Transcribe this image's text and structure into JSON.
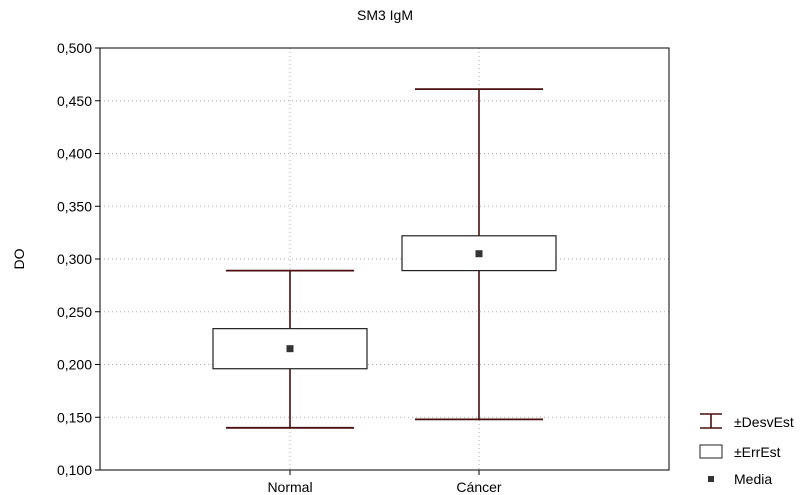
{
  "chart_data": {
    "type": "box",
    "title": "SM3 IgM",
    "xlabel": "",
    "ylabel": "DO",
    "categories": [
      "Normal",
      "Cáncer"
    ],
    "ylim": [
      0.1,
      0.5
    ],
    "yticks": [
      0.1,
      0.15,
      0.2,
      0.25,
      0.3,
      0.35,
      0.4,
      0.45,
      0.5
    ],
    "ytick_labels": [
      "0,100",
      "0,150",
      "0,200",
      "0,250",
      "0,300",
      "0,350",
      "0,400",
      "0,450",
      "0,500"
    ],
    "grid": true,
    "series": [
      {
        "category": "Normal",
        "mean": 0.215,
        "se_low": 0.196,
        "se_high": 0.234,
        "sd_low": 0.14,
        "sd_high": 0.289
      },
      {
        "category": "Cáncer",
        "mean": 0.305,
        "se_low": 0.289,
        "se_high": 0.322,
        "sd_low": 0.148,
        "sd_high": 0.461
      }
    ],
    "legend": {
      "position": "bottom-right",
      "items": [
        {
          "label": "±DesvEst",
          "symbol": "whisker"
        },
        {
          "label": "±ErrEst",
          "symbol": "box"
        },
        {
          "label": "Media",
          "symbol": "square"
        }
      ]
    },
    "colors": {
      "whisker": "#4a0e0e",
      "box": "#222222",
      "mean": "#333333",
      "grid": "#b0b0b0"
    }
  }
}
